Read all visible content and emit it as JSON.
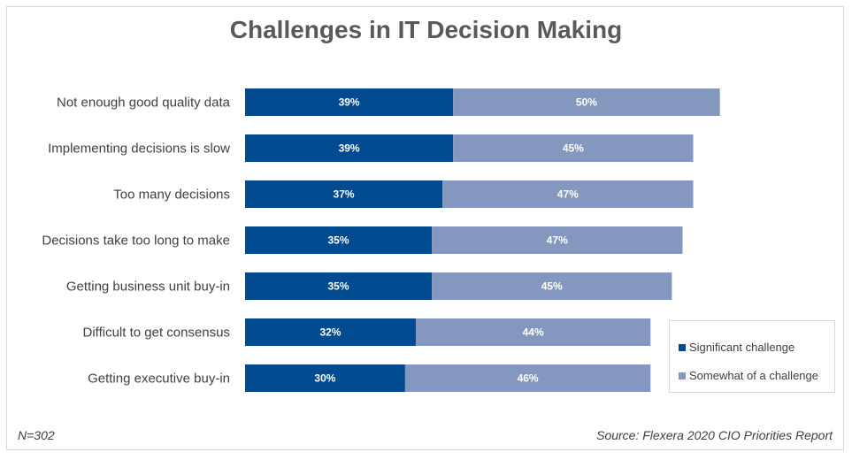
{
  "chart_data": {
    "type": "bar",
    "orientation": "horizontal",
    "stacked": true,
    "title": "Challenges in IT Decision Making",
    "xlabel": "",
    "ylabel": "",
    "categories": [
      "Not enough good quality data",
      "Implementing decisions is slow",
      "Too many decisions",
      "Decisions take too long to make",
      "Getting business unit buy-in",
      "Difficult to get consensus",
      "Getting executive buy-in"
    ],
    "series": [
      {
        "name": "Significant challenge",
        "color": "#004a8f",
        "values": [
          39,
          39,
          37,
          35,
          35,
          32,
          30
        ]
      },
      {
        "name": "Somewhat of a challenge",
        "color": "#8497bf",
        "values": [
          50,
          45,
          47,
          47,
          45,
          44,
          46
        ]
      }
    ],
    "value_suffix": "%",
    "xlim": [
      0,
      100
    ],
    "grid": false,
    "axes_visible": false,
    "legend_position": "bottom-right"
  },
  "footer": {
    "sample_size": "N=302",
    "source": "Source: Flexera 2020 CIO Priorities Report"
  }
}
